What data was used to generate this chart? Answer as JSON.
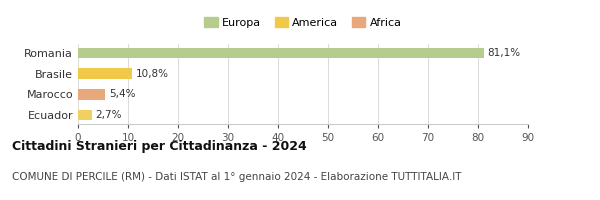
{
  "categories": [
    "Romania",
    "Brasile",
    "Marocco",
    "Ecuador"
  ],
  "values": [
    81.1,
    10.8,
    5.4,
    2.7
  ],
  "labels": [
    "81,1%",
    "10,8%",
    "5,4%",
    "2,7%"
  ],
  "colors": [
    "#b5cc8e",
    "#f0c84a",
    "#e8a87c",
    "#f0d060"
  ],
  "legend": [
    {
      "label": "Europa",
      "color": "#b5cc8e"
    },
    {
      "label": "America",
      "color": "#f0c84a"
    },
    {
      "label": "Africa",
      "color": "#e8a87c"
    }
  ],
  "xlim": [
    0,
    90
  ],
  "xticks": [
    0,
    10,
    20,
    30,
    40,
    50,
    60,
    70,
    80,
    90
  ],
  "title": "Cittadini Stranieri per Cittadinanza - 2024",
  "subtitle": "COMUNE DI PERCILE (RM) - Dati ISTAT al 1° gennaio 2024 - Elaborazione TUTTITALIA.IT",
  "title_fontsize": 9,
  "subtitle_fontsize": 7.5,
  "background_color": "#ffffff",
  "bar_height": 0.5
}
